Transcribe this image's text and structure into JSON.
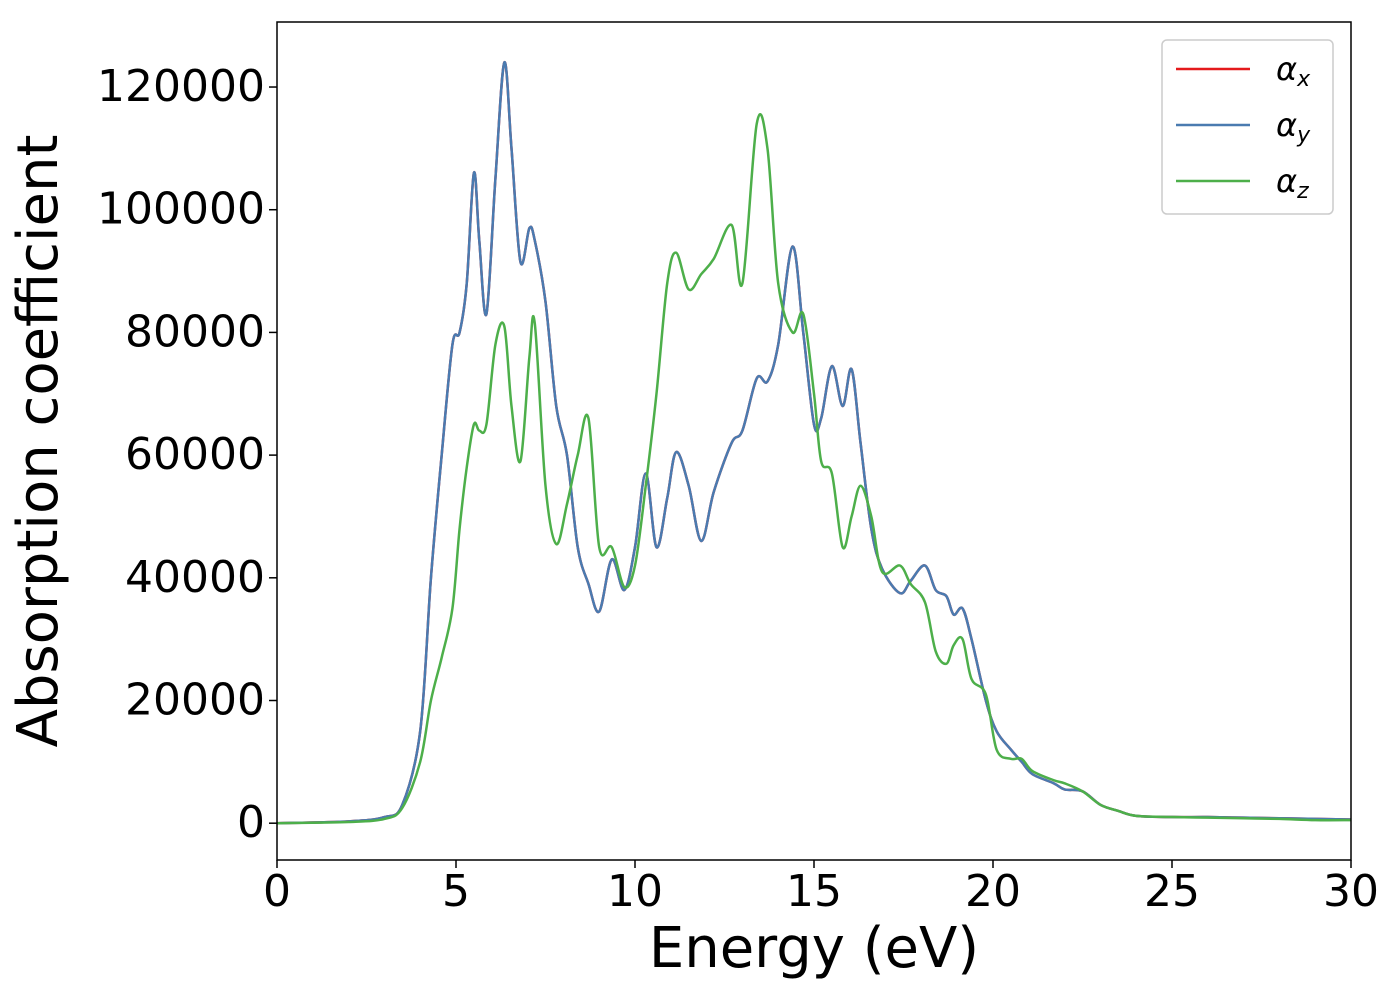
{
  "chart_data": {
    "type": "line",
    "xlabel": "Energy (eV)",
    "ylabel": "Absorption coefficient",
    "x": [
      0,
      2,
      3,
      3.5,
      4,
      4.3,
      4.6,
      4.9,
      5.1,
      5.3,
      5.5,
      5.65,
      5.85,
      6.1,
      6.35,
      6.55,
      6.8,
      7.05,
      7.2,
      7.5,
      7.8,
      8.1,
      8.4,
      8.7,
      9.0,
      9.35,
      9.7,
      10.0,
      10.3,
      10.6,
      10.9,
      11.15,
      11.5,
      11.85,
      12.2,
      12.7,
      13.0,
      13.4,
      13.7,
      14.0,
      14.4,
      14.7,
      15.0,
      15.2,
      15.5,
      15.8,
      16.05,
      16.3,
      16.6,
      16.9,
      17.4,
      17.7,
      18.1,
      18.4,
      18.7,
      18.9,
      19.15,
      19.4,
      19.8,
      20.1,
      20.5,
      20.8,
      21.1,
      21.7,
      22.0,
      22.5,
      23.0,
      23.5,
      24,
      25,
      26,
      27,
      28,
      29,
      30
    ],
    "series": [
      {
        "name": "αx",
        "color": "#e41a1c",
        "values": [
          0,
          300,
          1000,
          3000,
          15000,
          40000,
          60000,
          78000,
          80000,
          88000,
          106000,
          95000,
          83000,
          105000,
          124000,
          110000,
          91500,
          97000,
          95000,
          85000,
          68000,
          60000,
          45000,
          39000,
          34500,
          43000,
          38000,
          45000,
          57000,
          45000,
          53000,
          60500,
          55000,
          46000,
          54000,
          62000,
          64000,
          72500,
          72000,
          78000,
          94000,
          80000,
          65000,
          66000,
          74500,
          68000,
          74000,
          62000,
          48000,
          41500,
          37500,
          39500,
          42000,
          38000,
          37000,
          34000,
          35000,
          30000,
          20000,
          15000,
          12000,
          10000,
          8000,
          6500,
          5500,
          5200,
          3000,
          2000,
          1200,
          1000,
          1000,
          900,
          800,
          700,
          600
        ]
      },
      {
        "name": "αy",
        "color": "#4a7bb0",
        "values": [
          0,
          300,
          1000,
          3000,
          15000,
          40000,
          60000,
          78000,
          80000,
          88000,
          106000,
          95000,
          83000,
          105000,
          124000,
          110000,
          91500,
          97000,
          95000,
          85000,
          68000,
          60000,
          45000,
          39000,
          34500,
          43000,
          38000,
          45000,
          57000,
          45000,
          53000,
          60500,
          55000,
          46000,
          54000,
          62000,
          64000,
          72500,
          72000,
          78000,
          94000,
          80000,
          65000,
          66000,
          74500,
          68000,
          74000,
          62000,
          48000,
          41500,
          37500,
          39500,
          42000,
          38000,
          37000,
          34000,
          35000,
          30000,
          20000,
          15000,
          12000,
          10000,
          8000,
          6500,
          5500,
          5200,
          3000,
          2000,
          1200,
          1000,
          1000,
          900,
          800,
          700,
          600
        ]
      },
      {
        "name": "αz",
        "color": "#4daf4a",
        "values": [
          0,
          200,
          700,
          2500,
          10000,
          20000,
          27000,
          35000,
          48000,
          58000,
          65000,
          64000,
          65000,
          78000,
          81000,
          68000,
          59000,
          76000,
          81500,
          55000,
          45500,
          52000,
          60000,
          66000,
          45000,
          45000,
          38500,
          42000,
          55000,
          70000,
          88000,
          93000,
          87000,
          89500,
          92000,
          97500,
          88000,
          114000,
          110000,
          88000,
          80000,
          83000,
          70000,
          59000,
          57000,
          45000,
          50000,
          55000,
          50000,
          41000,
          42000,
          39000,
          36000,
          28000,
          26000,
          29000,
          30000,
          23500,
          21000,
          12000,
          10500,
          10500,
          8500,
          7000,
          6500,
          5200,
          3000,
          2000,
          1200,
          1000,
          900,
          800,
          700,
          500,
          500
        ]
      }
    ],
    "xlim": [
      0,
      30
    ],
    "ylim": [
      -6000,
      130600
    ],
    "xticks": [
      0,
      5,
      10,
      15,
      20,
      25,
      30
    ],
    "yticks": [
      0,
      20000,
      40000,
      60000,
      80000,
      100000,
      120000
    ],
    "legend": "upper right"
  }
}
